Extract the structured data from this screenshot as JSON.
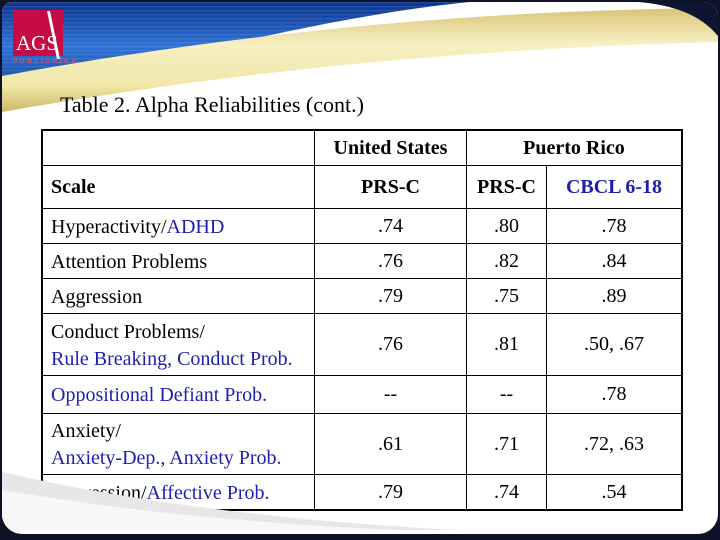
{
  "logo": {
    "acronym": "AGS",
    "publisher": "PUBLISHING"
  },
  "title": "Table 2. Alpha Reliabilities (cont.)",
  "table": {
    "group_headers": [
      "United States",
      "Puerto Rico"
    ],
    "scale_header": "Scale",
    "column_headers": [
      "PRS-C",
      "PRS-C",
      "CBCL 6-18"
    ],
    "rows": [
      {
        "label_parts": [
          {
            "text": "Hyperactivity/",
            "blue": false
          },
          {
            "text": "ADHD",
            "blue": true
          }
        ],
        "values": [
          {
            "text": ".74",
            "blue": false
          },
          {
            "text": ".80",
            "blue": false
          },
          {
            "text": ".78",
            "blue": true
          }
        ]
      },
      {
        "label_parts": [
          {
            "text": "Attention Problems",
            "blue": false
          }
        ],
        "values": [
          {
            "text": ".76",
            "blue": false
          },
          {
            "text": ".82",
            "blue": false
          },
          {
            "text": ".84",
            "blue": true
          }
        ]
      },
      {
        "label_parts": [
          {
            "text": "Aggression",
            "blue": false
          }
        ],
        "values": [
          {
            "text": ".79",
            "blue": false
          },
          {
            "text": ".75",
            "blue": false
          },
          {
            "text": ".89",
            "blue": true
          }
        ]
      },
      {
        "label_parts": [
          {
            "text": "Conduct Problems/",
            "blue": false
          },
          {
            "text": "Rule Breaking, Conduct Prob.",
            "blue": true
          }
        ],
        "values": [
          {
            "text": ".76",
            "blue": false
          },
          {
            "text": ".81",
            "blue": false
          },
          {
            "text": ".50, .67",
            "blue": true
          }
        ]
      },
      {
        "label_parts": [
          {
            "text": "Oppositional Defiant Prob.",
            "blue": true
          }
        ],
        "values": [
          {
            "text": "--",
            "blue": false
          },
          {
            "text": "--",
            "blue": false
          },
          {
            "text": ".78",
            "blue": true
          }
        ]
      },
      {
        "label_parts": [
          {
            "text": "Anxiety/",
            "blue": false
          },
          {
            "text": "Anxiety-Dep., Anxiety Prob.",
            "blue": true
          }
        ],
        "values": [
          {
            "text": ".61",
            "blue": false
          },
          {
            "text": ".71",
            "blue": false
          },
          {
            "text": ".72, .63",
            "blue": true
          }
        ]
      },
      {
        "label_parts": [
          {
            "text": "Depression/",
            "blue": false
          },
          {
            "text": "Affective Prob.",
            "blue": true
          }
        ],
        "values": [
          {
            "text": ".79",
            "blue": false
          },
          {
            "text": ".74",
            "blue": false
          },
          {
            "text": ".54",
            "blue": true
          }
        ]
      }
    ]
  },
  "colors": {
    "accent_blue_text": "#1f1faf",
    "banner_blue": "#1a54b8",
    "swoosh_cream": "#f2e9b4",
    "logo_red": "#c60c46",
    "background_navy": "#0e1226"
  }
}
